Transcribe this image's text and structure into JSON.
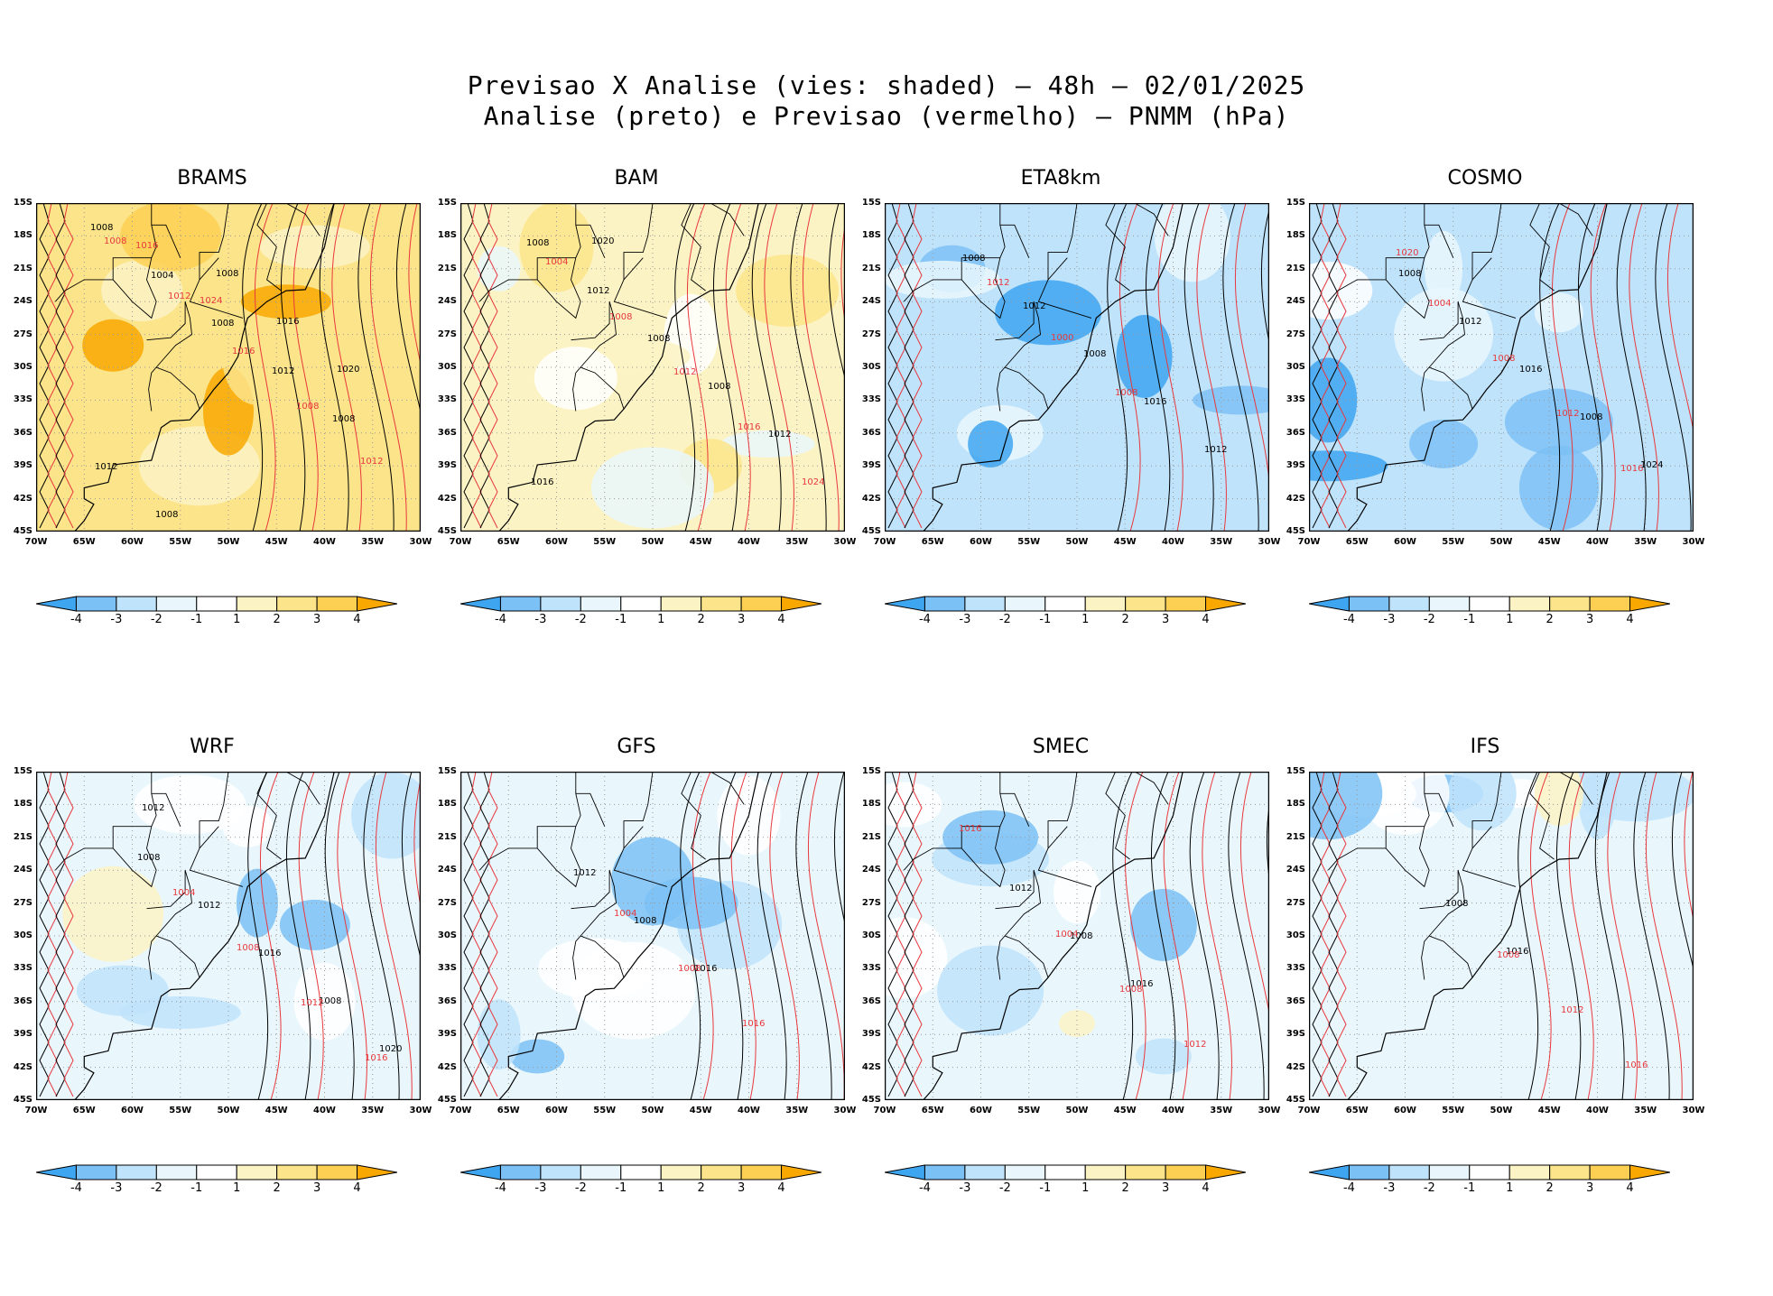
{
  "title": {
    "line1": "Previsao X Analise (vies: shaded) – 48h – 02/01/2025",
    "line2": "Analise (preto) e Previsao (vermelho) – PNMM (hPa)"
  },
  "colors": {
    "analysis_contour": "#000000",
    "forecast_contour": "#e8383d",
    "neg4": "#3ea5f0",
    "neg3": "#7cc1f5",
    "neg2": "#bfe3fb",
    "neg1": "#e9f7fd",
    "neutral": "#ffffff",
    "pos1": "#fcf3c4",
    "pos2": "#fbe48a",
    "pos3": "#fdd053",
    "pos4": "#f8a800"
  },
  "axes": {
    "lat_ticks": [
      "15S",
      "18S",
      "21S",
      "24S",
      "27S",
      "30S",
      "33S",
      "36S",
      "39S",
      "42S",
      "45S"
    ],
    "lon_ticks": [
      "70W",
      "65W",
      "60W",
      "55W",
      "50W",
      "45W",
      "40W",
      "35W",
      "30W"
    ]
  },
  "colorbar": {
    "labels": [
      "-4",
      "-3",
      "-2",
      "-1",
      "1",
      "2",
      "3",
      "4"
    ]
  },
  "panels": [
    {
      "name": "BRAMS",
      "bias": 2.8,
      "isobar_labels_black": [
        "1008",
        "1004",
        "1008",
        "1012",
        "1008",
        "1012",
        "1008",
        "1008",
        "1016",
        "1020"
      ],
      "isobar_labels_red": [
        "1008",
        "1012",
        "1016",
        "1008",
        "1012",
        "1016",
        "1024"
      ]
    },
    {
      "name": "BAM",
      "bias": 1.0,
      "isobar_labels_black": [
        "1008",
        "1012",
        "1008",
        "1008",
        "1012",
        "1016",
        "1020"
      ],
      "isobar_labels_red": [
        "1004",
        "1008",
        "1012",
        "1016",
        "1024"
      ]
    },
    {
      "name": "ETA8km",
      "bias": -1.8,
      "isobar_labels_black": [
        "1008",
        "1012",
        "1008",
        "1016",
        "1012"
      ],
      "isobar_labels_red": [
        "1012",
        "1000",
        "1008"
      ]
    },
    {
      "name": "COSMO",
      "bias": -1.4,
      "isobar_labels_black": [
        "1008",
        "1012",
        "1016",
        "1008",
        "1024"
      ],
      "isobar_labels_red": [
        "1004",
        "1008",
        "1012",
        "1016",
        "1020"
      ]
    },
    {
      "name": "WRF",
      "bias": -0.6,
      "isobar_labels_black": [
        "1008",
        "1012",
        "1016",
        "1008",
        "1020",
        "1012"
      ],
      "isobar_labels_red": [
        "1004",
        "1008",
        "1012",
        "1016"
      ]
    },
    {
      "name": "GFS",
      "bias": -0.8,
      "isobar_labels_black": [
        "1012",
        "1008",
        "1016"
      ],
      "isobar_labels_red": [
        "1004",
        "1008",
        "1016"
      ]
    },
    {
      "name": "SMEC",
      "bias": -0.4,
      "isobar_labels_black": [
        "1012",
        "1008",
        "1016"
      ],
      "isobar_labels_red": [
        "1004",
        "1008",
        "1012",
        "1016"
      ]
    },
    {
      "name": "IFS",
      "bias": -0.3,
      "isobar_labels_black": [
        "1008",
        "1016"
      ],
      "isobar_labels_red": [
        "1008",
        "1012",
        "1016"
      ]
    }
  ]
}
